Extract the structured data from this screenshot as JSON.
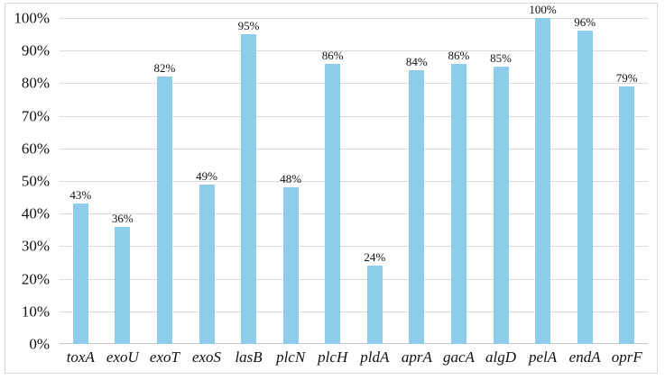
{
  "chart_data": {
    "type": "bar",
    "title": "",
    "xlabel": "",
    "ylabel": "",
    "categories": [
      "toxA",
      "exoU",
      "exoT",
      "exoS",
      "lasB",
      "plcN",
      "plcH",
      "pldA",
      "aprA",
      "gacA",
      "algD",
      "pelA",
      "endA",
      "oprF"
    ],
    "values": [
      43,
      36,
      82,
      49,
      95,
      48,
      86,
      24,
      84,
      86,
      85,
      100,
      96,
      79
    ],
    "value_labels": [
      "43%",
      "36%",
      "82%",
      "49%",
      "95%",
      "48%",
      "86%",
      "24%",
      "84%",
      "86%",
      "85%",
      "100%",
      "96%",
      "79%"
    ],
    "ylim": [
      0,
      100
    ],
    "y_ticks": [
      "0%",
      "10%",
      "20%",
      "30%",
      "40%",
      "50%",
      "60%",
      "70%",
      "80%",
      "90%",
      "100%"
    ],
    "grid": true,
    "legend": "none",
    "colors": {
      "bar": "#8dcdea",
      "gridline": "#dadada",
      "axis_line": "#c6c6c6",
      "frame_border": "#d9d9d9",
      "text": "#111111",
      "background": "#ffffff"
    }
  }
}
